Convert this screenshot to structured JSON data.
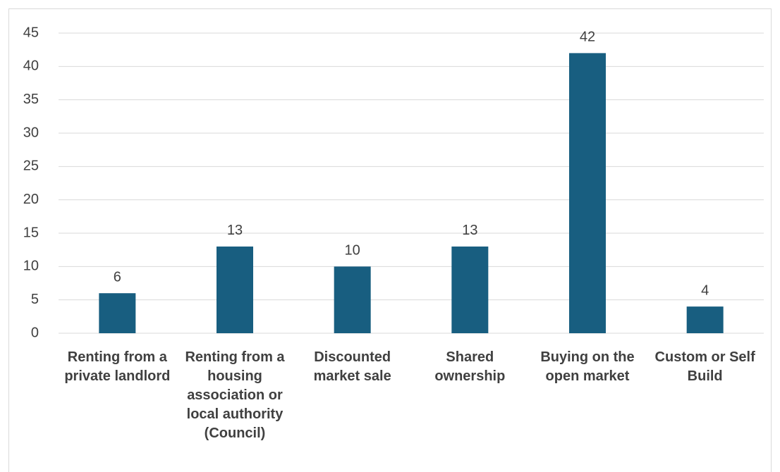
{
  "chart_data": {
    "type": "bar",
    "categories": [
      "Renting from a private landlord",
      "Renting from a housing association or local authority (Council)",
      "Discounted market sale",
      "Shared ownership",
      "Buying on the open market",
      "Custom or Self Build"
    ],
    "values": [
      6,
      13,
      10,
      13,
      42,
      4
    ],
    "color": "#185e80",
    "ylim": [
      0,
      45
    ],
    "yticks": [
      0,
      5,
      10,
      15,
      20,
      25,
      30,
      35,
      40,
      45
    ],
    "grid": true
  }
}
